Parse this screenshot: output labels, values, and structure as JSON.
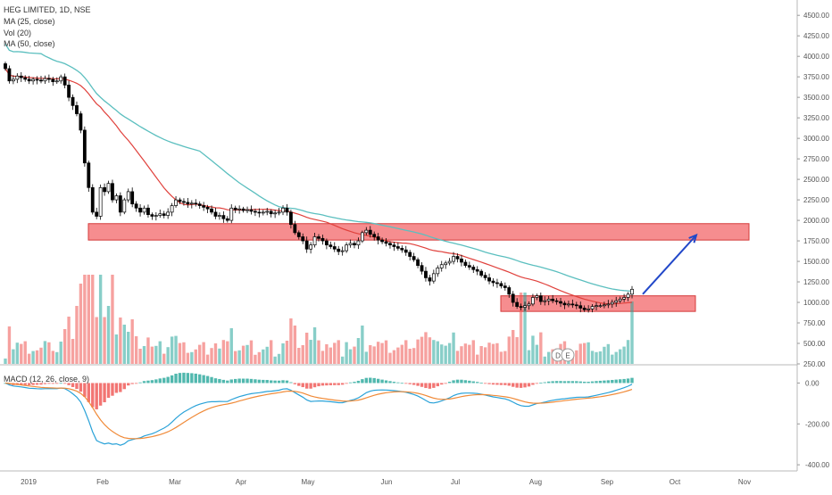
{
  "legend": {
    "title": "HEG LIMITED, 1D, NSE",
    "ma25": "MA (25, close)",
    "vol": "Vol (20)",
    "ma50": "MA (50, close)",
    "macd": "MACD (12, 26, close, 9)"
  },
  "colors": {
    "up": "#26a69a",
    "down": "#ef5350",
    "candle_body_up": "#ffffff",
    "candle_body_down": "#000000",
    "ma25": "#e0413c",
    "ma50": "#5bbfbf",
    "zone_fill": "#f4797b",
    "zone_border": "#d43a3a",
    "arrow": "#2248c9",
    "macd_line": "#2aa2d8",
    "signal_line": "#f08a38"
  },
  "chart_data": [
    {
      "type": "candlestick",
      "name": "price",
      "x_labels": [
        "2019",
        "Feb",
        "Mar",
        "Apr",
        "May",
        "Jun",
        "Jul",
        "Aug",
        "Sep",
        "Oct",
        "Nov"
      ],
      "y_ticks": [
        "4500.00",
        "4250.00",
        "4000.00",
        "3750.00",
        "3500.00",
        "3250.00",
        "3000.00",
        "2750.00",
        "2500.00",
        "2250.00",
        "2000.00",
        "1750.00",
        "1500.00",
        "1250.00",
        "1000.00",
        "750.00",
        "500.00",
        "250.00"
      ],
      "ylim": [
        250,
        4600
      ],
      "closes": [
        3850,
        3700,
        3720,
        3760,
        3740,
        3720,
        3700,
        3720,
        3710,
        3700,
        3730,
        3720,
        3690,
        3700,
        3750,
        3650,
        3500,
        3400,
        3300,
        3100,
        2700,
        2400,
        2100,
        2050,
        2400,
        2350,
        2450,
        2250,
        2300,
        2100,
        2250,
        2350,
        2200,
        2150,
        2100,
        2150,
        2070,
        2050,
        2060,
        2080,
        2060,
        2100,
        2180,
        2250,
        2230,
        2220,
        2200,
        2210,
        2200,
        2180,
        2160,
        2140,
        2100,
        2050,
        2060,
        2020,
        2000,
        2150,
        2130,
        2140,
        2120,
        2130,
        2110,
        2100,
        2090,
        2100,
        2110,
        2080,
        2090,
        2100,
        2150,
        2100,
        1950,
        1850,
        1800,
        1750,
        1650,
        1700,
        1800,
        1780,
        1750,
        1700,
        1680,
        1650,
        1620,
        1630,
        1700,
        1720,
        1700,
        1750,
        1850,
        1880,
        1830,
        1800,
        1760,
        1740,
        1720,
        1700,
        1680,
        1660,
        1640,
        1610,
        1560,
        1520,
        1450,
        1380,
        1300,
        1260,
        1350,
        1420,
        1460,
        1480,
        1500,
        1560,
        1530,
        1490,
        1450,
        1430,
        1400,
        1380,
        1330,
        1300,
        1260,
        1240,
        1230,
        1200,
        1180,
        1100,
        1000,
        950,
        940,
        960,
        980,
        1060,
        1080,
        1010,
        1020,
        1040,
        1020,
        1010,
        990,
        970,
        980,
        970,
        960,
        930,
        910,
        920,
        950,
        960,
        960,
        970,
        980,
        1000,
        1020,
        1040,
        1060,
        1100,
        1160
      ],
      "vol_ticks": [
        "1000.00",
        "750.00",
        "500.00",
        "250.00"
      ]
    },
    {
      "type": "line",
      "name": "macd",
      "y_ticks": [
        "0.00",
        "-200.00",
        "-400.00"
      ],
      "ylim": [
        -430,
        50
      ]
    }
  ],
  "annotations": {
    "zone_upper": [
      1760,
      1960
    ],
    "zone_lower": [
      890,
      1080
    ],
    "arrow": {
      "from_price": 1100,
      "to_price": 1820
    }
  }
}
